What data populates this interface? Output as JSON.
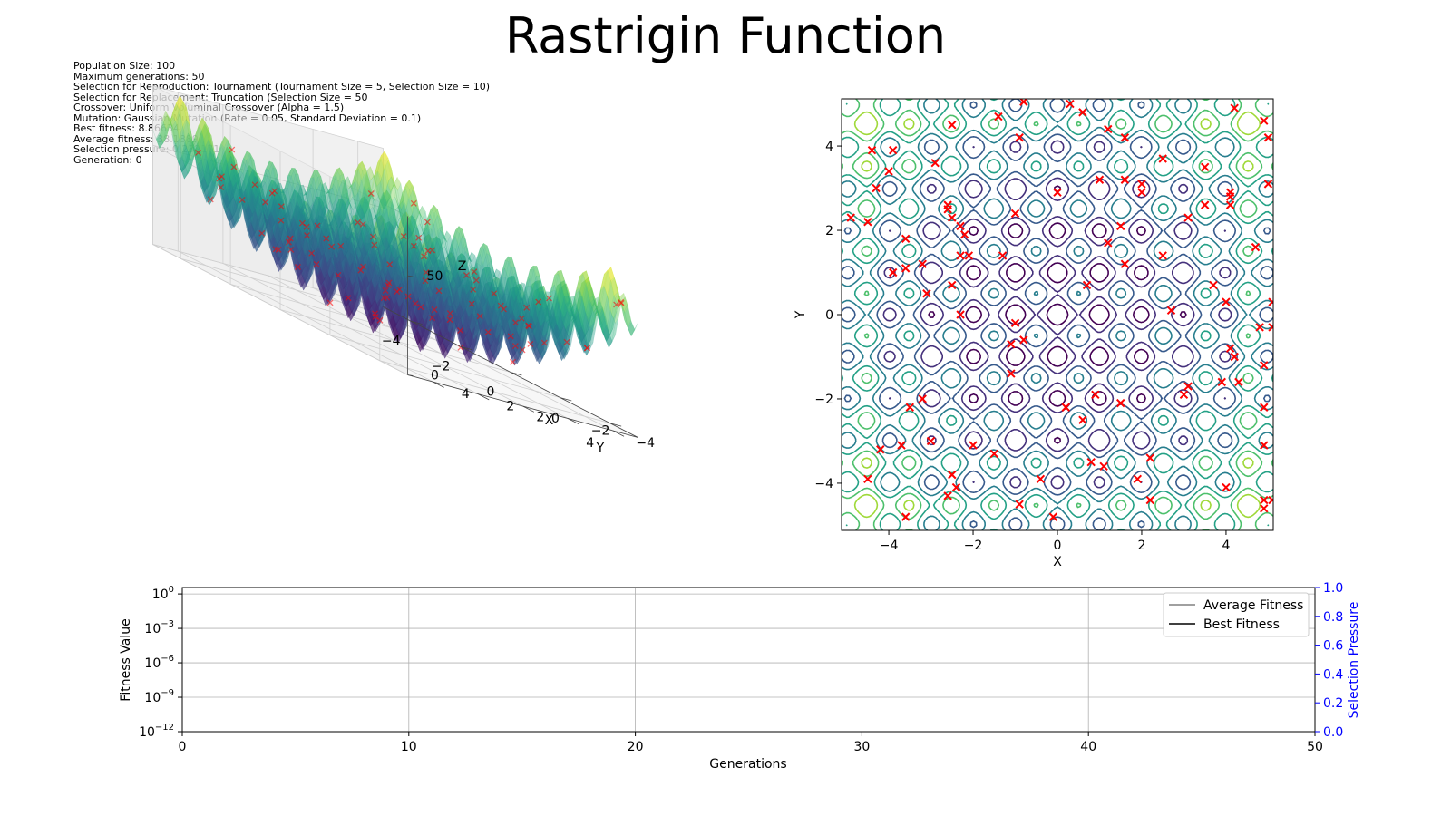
{
  "title": "Rastrigin Function",
  "info": [
    "Population Size: 100",
    "Maximum generations: 50",
    "Selection for Reproduction: Tournament (Tournament Size = 5, Selection Size = 10)",
    "Selection for Replacement: Truncation (Selection Size = 50",
    "Crossover: Uniform Voluminal Crossover (Alpha = 1.5)",
    "Mutation: Gaussian Mutation (Rate = 0.05, Standard Deviation = 0.1)",
    "Best fitness: 8.86634",
    "Average fitness: 38.1889",
    "Selection pressure: 0.232171",
    "Generation: 0"
  ],
  "colors": {
    "population_marker": "#ff0000",
    "right_axis": "#0000ff",
    "average_line": "#808080",
    "best_line": "#000000"
  },
  "chart_data": [
    {
      "type": "surface3d",
      "function": "rastrigin",
      "xlabel": "X",
      "ylabel": "Y",
      "zlabel": "Z",
      "xlim": [
        -5.12,
        5.12
      ],
      "ylim": [
        -5.12,
        5.12
      ],
      "zlim": [
        0,
        80
      ],
      "xticks": [
        "−4",
        "−2",
        "0",
        "2",
        "4"
      ],
      "yticks": [
        "−4",
        "−2",
        "0",
        "2",
        "4"
      ],
      "zticks": [
        "0",
        "50"
      ],
      "colormap": "viridis"
    },
    {
      "type": "contour",
      "function": "rastrigin",
      "xlabel": "X",
      "ylabel": "Y",
      "xlim": [
        -5.12,
        5.12
      ],
      "ylim": [
        -5.12,
        5.12
      ],
      "xticks": [
        "−4",
        "−2",
        "0",
        "2",
        "4"
      ],
      "yticks": [
        "−4",
        "−2",
        "0",
        "2",
        "4"
      ],
      "colormap": "viridis",
      "points": [
        [
          -3.2,
          1.2
        ],
        [
          -2.5,
          4.5
        ],
        [
          -1.4,
          4.7
        ],
        [
          -0.8,
          5.05
        ],
        [
          0.3,
          5.0
        ],
        [
          0.6,
          4.8
        ],
        [
          4.2,
          4.9
        ],
        [
          4.9,
          4.6
        ],
        [
          -4.4,
          3.9
        ],
        [
          -3.9,
          3.9
        ],
        [
          -2.9,
          3.6
        ],
        [
          -0.9,
          4.2
        ],
        [
          1.2,
          4.4
        ],
        [
          1.6,
          4.2
        ],
        [
          4.1,
          2.9
        ],
        [
          5.0,
          4.2
        ],
        [
          -4.0,
          3.4
        ],
        [
          -4.3,
          3.0
        ],
        [
          -2.6,
          2.6
        ],
        [
          -2.6,
          2.5
        ],
        [
          1.0,
          3.2
        ],
        [
          1.6,
          3.2
        ],
        [
          2.0,
          3.1
        ],
        [
          2.5,
          3.7
        ],
        [
          3.5,
          3.5
        ],
        [
          4.1,
          2.8
        ],
        [
          5.0,
          3.1
        ],
        [
          -4.9,
          2.3
        ],
        [
          -4.5,
          2.2
        ],
        [
          -2.5,
          2.3
        ],
        [
          -2.3,
          2.1
        ],
        [
          -1.0,
          2.4
        ],
        [
          0.0,
          2.9
        ],
        [
          1.5,
          2.1
        ],
        [
          2.0,
          2.9
        ],
        [
          3.1,
          2.3
        ],
        [
          3.5,
          2.6
        ],
        [
          4.1,
          2.6
        ],
        [
          -3.6,
          1.8
        ],
        [
          -2.2,
          1.9
        ],
        [
          -2.3,
          1.4
        ],
        [
          -2.1,
          1.4
        ],
        [
          -1.3,
          1.4
        ],
        [
          1.2,
          1.7
        ],
        [
          1.6,
          1.2
        ],
        [
          2.5,
          1.4
        ],
        [
          4.7,
          1.6
        ],
        [
          -3.9,
          1.0
        ],
        [
          -3.6,
          1.1
        ],
        [
          -3.1,
          0.5
        ],
        [
          -2.5,
          0.7
        ],
        [
          -2.3,
          0.0
        ],
        [
          0.7,
          0.7
        ],
        [
          2.7,
          0.1
        ],
        [
          3.7,
          0.7
        ],
        [
          4.0,
          0.3
        ],
        [
          5.1,
          0.3
        ],
        [
          -1.0,
          -0.2
        ],
        [
          -1.1,
          -0.7
        ],
        [
          -0.8,
          -0.6
        ],
        [
          4.8,
          -0.3
        ],
        [
          5.1,
          -0.3
        ],
        [
          4.1,
          -0.8
        ],
        [
          4.2,
          -1.0
        ],
        [
          4.9,
          -1.2
        ],
        [
          -1.1,
          -1.4
        ],
        [
          3.1,
          -1.7
        ],
        [
          3.9,
          -1.6
        ],
        [
          4.3,
          -1.6
        ],
        [
          3.0,
          -1.9
        ],
        [
          -3.2,
          -2.0
        ],
        [
          -3.5,
          -2.2
        ],
        [
          0.2,
          -2.2
        ],
        [
          0.9,
          -1.9
        ],
        [
          1.5,
          -2.1
        ],
        [
          4.9,
          -2.2
        ],
        [
          0.6,
          -2.5
        ],
        [
          -3.0,
          -3.0
        ],
        [
          -3.7,
          -3.1
        ],
        [
          -4.2,
          -3.2
        ],
        [
          -2.0,
          -3.1
        ],
        [
          -1.5,
          -3.3
        ],
        [
          0.8,
          -3.5
        ],
        [
          1.1,
          -3.6
        ],
        [
          2.2,
          -3.4
        ],
        [
          4.9,
          -3.1
        ],
        [
          -4.5,
          -3.9
        ],
        [
          -2.5,
          -3.8
        ],
        [
          -2.4,
          -4.1
        ],
        [
          -0.4,
          -3.9
        ],
        [
          1.9,
          -3.9
        ],
        [
          4.0,
          -4.1
        ],
        [
          -2.6,
          -4.3
        ],
        [
          -0.9,
          -4.5
        ],
        [
          -0.1,
          -4.8
        ],
        [
          2.2,
          -4.4
        ],
        [
          4.9,
          -4.4
        ],
        [
          4.9,
          -4.6
        ],
        [
          -3.6,
          -4.8
        ],
        [
          5.1,
          -4.4
        ]
      ]
    },
    {
      "type": "line",
      "xlabel": "Generations",
      "ylabel": "Fitness Value",
      "y2label": "Selection Pressure",
      "xlim": [
        0,
        50
      ],
      "xticks": [
        "0",
        "10",
        "20",
        "30",
        "40",
        "50"
      ],
      "yscale": "log",
      "yticks": [
        "10",
        "10",
        "10",
        "10",
        "10"
      ],
      "yexps": [
        "−12",
        "−9",
        "−6",
        "−3",
        "0"
      ],
      "y2lim": [
        0,
        1
      ],
      "y2ticks": [
        "0.0",
        "0.2",
        "0.4",
        "0.6",
        "0.8",
        "1.0"
      ],
      "grid": true,
      "legend_position": "top-right",
      "series": [
        {
          "name": "Average Fitness",
          "values": []
        },
        {
          "name": "Best Fitness",
          "values": []
        }
      ]
    }
  ]
}
